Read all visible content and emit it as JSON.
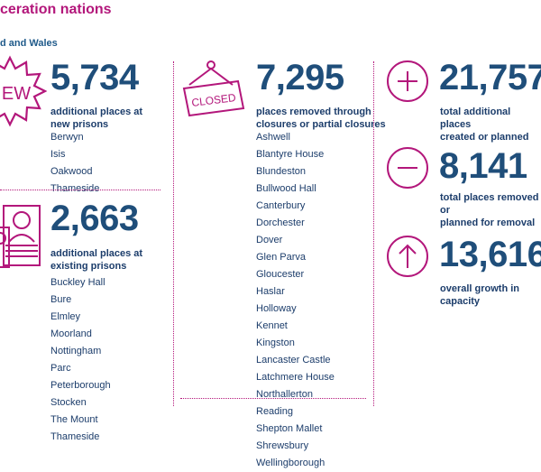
{
  "header": {
    "title": "ceration nations",
    "subtitle": "d and Wales"
  },
  "new_prisons": {
    "icon_text": "EW",
    "number": "5,734",
    "caption_line1": "additional places at",
    "caption_line2": "new prisons",
    "items": [
      "Berwyn",
      "Isis",
      "Oakwood",
      "Thameside"
    ]
  },
  "existing_prisons": {
    "number": "2,663",
    "caption_line1": "additional places at",
    "caption_line2": "existing prisons",
    "items": [
      "Buckley Hall",
      "Bure",
      "Elmley",
      "Moorland",
      "Nottingham",
      "Parc",
      "Peterborough",
      "Stocken",
      "The Mount",
      "Thameside"
    ]
  },
  "closures": {
    "sign_text": "CLOSED",
    "number": "7,295",
    "caption_line1": "places removed through",
    "caption_line2": "closures or partial closures",
    "items": [
      "Ashwell",
      "Blantyre House",
      "Blundeston",
      "Bullwood Hall",
      "Canterbury",
      "Dorchester",
      "Dover",
      "Glen Parva",
      "Gloucester",
      "Haslar",
      "Holloway",
      "Kennet",
      "Kingston",
      "Lancaster Castle",
      "Latchmere House",
      "Northallerton",
      "Reading",
      "Shepton Mallet",
      "Shrewsbury",
      "Wellingborough"
    ]
  },
  "summary": {
    "added": {
      "number": "21,757",
      "caption_line1": "total additional places",
      "caption_line2": "created or planned"
    },
    "removed": {
      "number": "8,141",
      "caption_line1": "total places removed or",
      "caption_line2": "planned for removal"
    },
    "growth": {
      "number": "13,616",
      "caption_line1": "overall growth in capacity",
      "caption_line2": ""
    }
  },
  "colors": {
    "accent": "#b3177b",
    "navy": "#1f4e7a",
    "text": "#1c3d6b"
  },
  "icons": [
    "new-burst-icon",
    "people-icon",
    "closed-sign-icon",
    "plus-circle-icon",
    "minus-circle-icon",
    "up-arrow-circle-icon"
  ]
}
